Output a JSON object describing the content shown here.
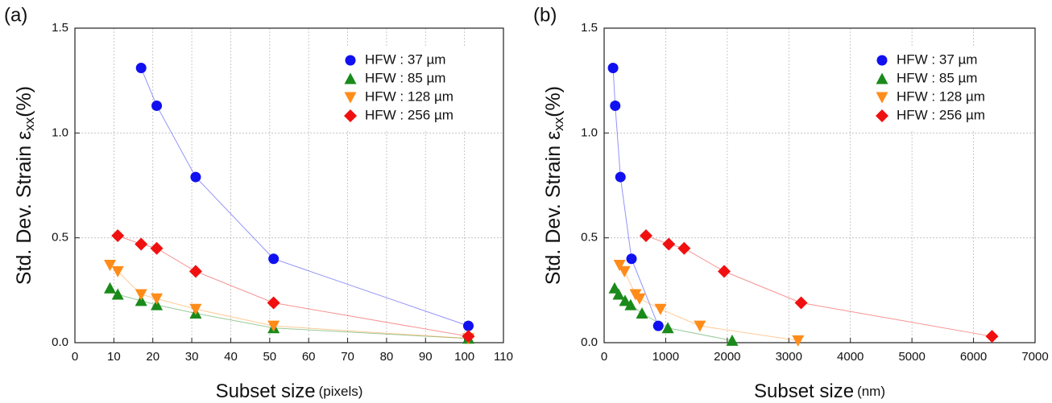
{
  "chart_data": [
    {
      "type": "line",
      "label": "(a)",
      "ylabel": "Std. Dev. Strain ε",
      "ylabel_sub": "xx",
      "ylabel_unit": "(%)",
      "xlabel": "Subset size",
      "xlabel_unit": "(pixels)",
      "xlim": [
        0,
        110
      ],
      "xticks": [
        0,
        10,
        20,
        30,
        40,
        50,
        60,
        70,
        80,
        90,
        100,
        110
      ],
      "ylim": [
        0,
        1.5
      ],
      "yticks": [
        {
          "value": 0,
          "label": "0.0"
        },
        0.5,
        {
          "value": 1,
          "label": "1.0"
        },
        1.5
      ],
      "grid": true,
      "legend": "upper right",
      "series": [
        {
          "name": "HFW : 37 µm",
          "color": "#1010f0",
          "marker": "circle",
          "x": [
            17,
            21,
            31,
            51,
            101
          ],
          "values": [
            1.31,
            1.13,
            0.79,
            0.4,
            0.08
          ]
        },
        {
          "name": "HFW : 85 µm",
          "color": "#1a8a1a",
          "marker": "triangle-up",
          "x": [
            9,
            11,
            17,
            21,
            31,
            51,
            101
          ],
          "values": [
            0.26,
            0.23,
            0.2,
            0.18,
            0.14,
            0.07,
            0.02
          ]
        },
        {
          "name": "HFW : 128 µm",
          "color": "#ff8c1a",
          "marker": "triangle-down",
          "x": [
            9,
            11,
            17,
            21,
            31,
            51,
            101
          ],
          "values": [
            0.37,
            0.34,
            0.23,
            0.21,
            0.16,
            0.08,
            0.02
          ]
        },
        {
          "name": "HFW : 256 µm",
          "color": "#f01010",
          "marker": "diamond",
          "x": [
            11,
            17,
            21,
            31,
            51,
            101
          ],
          "values": [
            0.51,
            0.47,
            0.45,
            0.34,
            0.19,
            0.03
          ]
        }
      ]
    },
    {
      "type": "line",
      "label": "(b)",
      "ylabel": "Std. Dev. Strain ε",
      "ylabel_sub": "xx",
      "ylabel_unit": "(%)",
      "xlabel": "Subset size",
      "xlabel_unit": "(nm)",
      "xlim": [
        0,
        7000
      ],
      "xticks": [
        0,
        1000,
        2000,
        3000,
        4000,
        5000,
        6000,
        7000
      ],
      "ylim": [
        0,
        1.5
      ],
      "yticks": [
        {
          "value": 0,
          "label": "0.0"
        },
        0.5,
        {
          "value": 1,
          "label": "1.0"
        },
        1.5
      ],
      "grid": true,
      "legend": "upper right",
      "series": [
        {
          "name": "HFW : 37 µm",
          "color": "#1010f0",
          "marker": "circle",
          "x": [
            145,
            180,
            265,
            445,
            880
          ],
          "values": [
            1.31,
            1.13,
            0.79,
            0.4,
            0.08
          ]
        },
        {
          "name": "HFW : 85 µm",
          "color": "#1a8a1a",
          "marker": "triangle-up",
          "x": [
            170,
            235,
            340,
            430,
            615,
            1035,
            2080
          ],
          "values": [
            0.26,
            0.23,
            0.2,
            0.18,
            0.14,
            0.07,
            0.01
          ]
        },
        {
          "name": "HFW : 128 µm",
          "color": "#ff8c1a",
          "marker": "triangle-down",
          "x": [
            250,
            330,
            510,
            575,
            915,
            1555,
            3150
          ],
          "values": [
            0.37,
            0.34,
            0.23,
            0.21,
            0.16,
            0.08,
            0.01
          ]
        },
        {
          "name": "HFW : 256 µm",
          "color": "#f01010",
          "marker": "diamond",
          "x": [
            680,
            1050,
            1300,
            1950,
            3200,
            6300
          ],
          "values": [
            0.51,
            0.47,
            0.45,
            0.34,
            0.19,
            0.03
          ]
        }
      ]
    }
  ]
}
